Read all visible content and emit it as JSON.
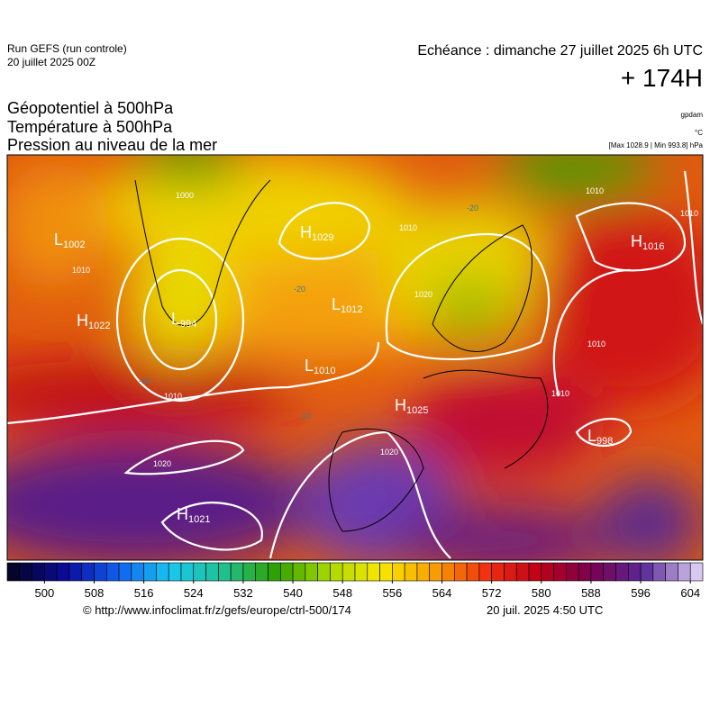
{
  "header": {
    "run": "Run GEFS (run controle)",
    "run_date": "20 juillet 2025 00Z",
    "valid": "Echéance : dimanche 27 juillet 2025 6h UTC",
    "lead": "+ 174H",
    "fields": [
      "Géopotentiel à 500hPa",
      "Température à 500hPa",
      "Pression au niveau de la mer"
    ],
    "units": [
      "gpdam",
      "°C"
    ],
    "extremes": "[Max 1028.9 | Min 993.8] hPa"
  },
  "map": {
    "centers": [
      {
        "letter": "L",
        "value": "1002"
      },
      {
        "letter": "L",
        "value": "994"
      },
      {
        "letter": "H",
        "value": "1029"
      },
      {
        "letter": "L",
        "value": "1012"
      },
      {
        "letter": "H",
        "value": "1022"
      },
      {
        "letter": "L",
        "value": "1010"
      },
      {
        "letter": "H",
        "value": "1025"
      },
      {
        "letter": "H",
        "value": "1021"
      },
      {
        "letter": "H",
        "value": "1016"
      },
      {
        "letter": "L",
        "value": "998"
      }
    ],
    "isobar_labels": [
      "1020",
      "1010",
      "1010",
      "1010",
      "1010",
      "1020",
      "1020",
      "1010",
      "1010",
      "1000",
      "1010"
    ],
    "isotherm_labels": [
      "-20",
      "-20",
      "-10",
      "-10"
    ]
  },
  "colorbar": {
    "range": [
      494,
      606
    ],
    "step": 2,
    "ticks": [
      500,
      508,
      516,
      524,
      532,
      540,
      548,
      556,
      564,
      572,
      580,
      588,
      596,
      604
    ],
    "color_stops": [
      "#05052a",
      "#0a0a9a",
      "#1060f0",
      "#18c8f0",
      "#20c090",
      "#30a000",
      "#a8d800",
      "#f8e800",
      "#f8a000",
      "#f03010",
      "#c00018",
      "#780050",
      "#5a2a98",
      "#d8c8f0"
    ]
  },
  "footer": {
    "source": "© http://www.infoclimat.fr/z/gefs/europe/ctrl-500/174",
    "generated": "20 juil. 2025  4:50 UTC"
  }
}
